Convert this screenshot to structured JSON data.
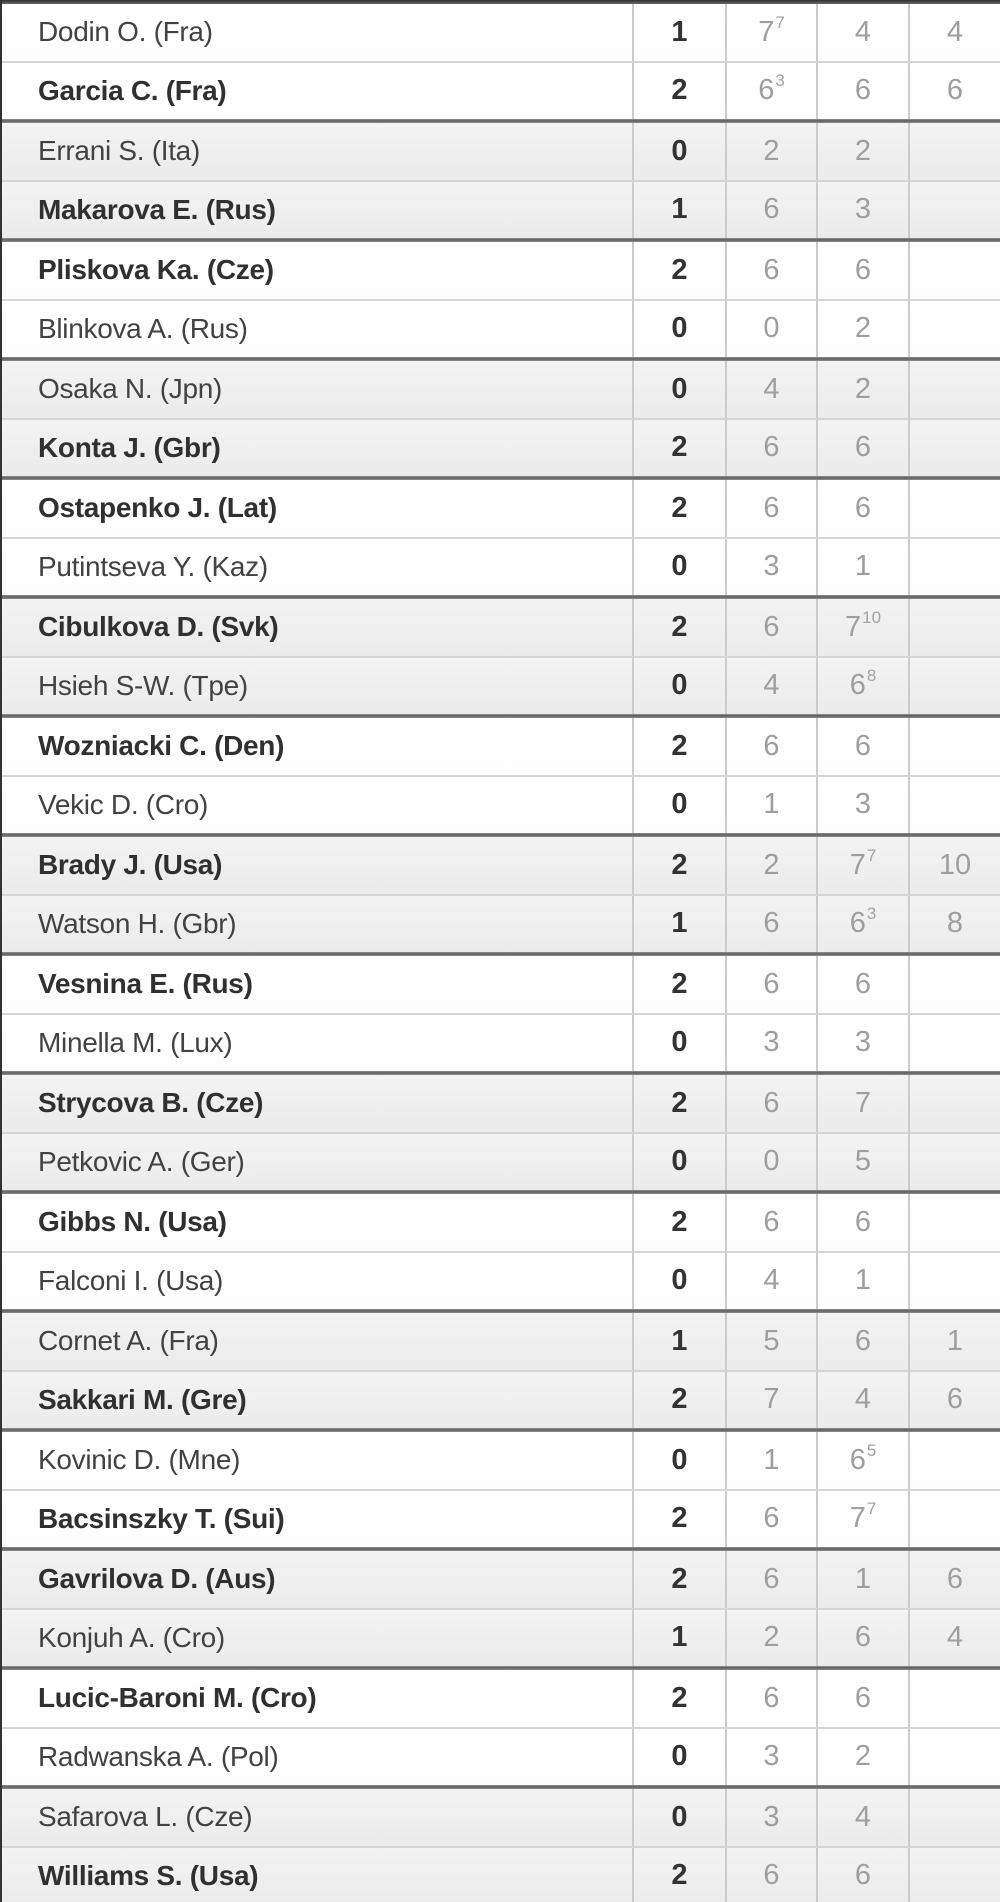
{
  "table": {
    "kind": "tennis-match-results",
    "columns": [
      "player",
      "sets_won",
      "set1",
      "set2",
      "set3"
    ],
    "matches": [
      {
        "shaded": false,
        "players": [
          {
            "name": "Dodin O. (Fra)",
            "winner": false,
            "sets_won": "1",
            "set_scores": [
              {
                "games": "7",
                "tiebreak": "7"
              },
              {
                "games": "4"
              },
              {
                "games": "4"
              }
            ]
          },
          {
            "name": "Garcia C. (Fra)",
            "winner": true,
            "sets_won": "2",
            "set_scores": [
              {
                "games": "6",
                "tiebreak": "3"
              },
              {
                "games": "6"
              },
              {
                "games": "6"
              }
            ]
          }
        ]
      },
      {
        "shaded": true,
        "players": [
          {
            "name": "Errani S. (Ita)",
            "winner": false,
            "sets_won": "0",
            "set_scores": [
              {
                "games": "2"
              },
              {
                "games": "2"
              }
            ]
          },
          {
            "name": "Makarova E. (Rus)",
            "winner": true,
            "sets_won": "1",
            "set_scores": [
              {
                "games": "6"
              },
              {
                "games": "3"
              }
            ]
          }
        ]
      },
      {
        "shaded": false,
        "players": [
          {
            "name": "Pliskova Ka. (Cze)",
            "winner": true,
            "sets_won": "2",
            "set_scores": [
              {
                "games": "6"
              },
              {
                "games": "6"
              }
            ]
          },
          {
            "name": "Blinkova A. (Rus)",
            "winner": false,
            "sets_won": "0",
            "set_scores": [
              {
                "games": "0"
              },
              {
                "games": "2"
              }
            ]
          }
        ]
      },
      {
        "shaded": true,
        "players": [
          {
            "name": "Osaka N. (Jpn)",
            "winner": false,
            "sets_won": "0",
            "set_scores": [
              {
                "games": "4"
              },
              {
                "games": "2"
              }
            ]
          },
          {
            "name": "Konta J. (Gbr)",
            "winner": true,
            "sets_won": "2",
            "set_scores": [
              {
                "games": "6"
              },
              {
                "games": "6"
              }
            ]
          }
        ]
      },
      {
        "shaded": false,
        "players": [
          {
            "name": "Ostapenko J. (Lat)",
            "winner": true,
            "sets_won": "2",
            "set_scores": [
              {
                "games": "6"
              },
              {
                "games": "6"
              }
            ]
          },
          {
            "name": "Putintseva Y. (Kaz)",
            "winner": false,
            "sets_won": "0",
            "set_scores": [
              {
                "games": "3"
              },
              {
                "games": "1"
              }
            ]
          }
        ]
      },
      {
        "shaded": true,
        "players": [
          {
            "name": "Cibulkova D. (Svk)",
            "winner": true,
            "sets_won": "2",
            "set_scores": [
              {
                "games": "6"
              },
              {
                "games": "7",
                "tiebreak": "10"
              }
            ]
          },
          {
            "name": "Hsieh S-W. (Tpe)",
            "winner": false,
            "sets_won": "0",
            "set_scores": [
              {
                "games": "4"
              },
              {
                "games": "6",
                "tiebreak": "8"
              }
            ]
          }
        ]
      },
      {
        "shaded": false,
        "players": [
          {
            "name": "Wozniacki C. (Den)",
            "winner": true,
            "sets_won": "2",
            "set_scores": [
              {
                "games": "6"
              },
              {
                "games": "6"
              }
            ]
          },
          {
            "name": "Vekic D. (Cro)",
            "winner": false,
            "sets_won": "0",
            "set_scores": [
              {
                "games": "1"
              },
              {
                "games": "3"
              }
            ]
          }
        ]
      },
      {
        "shaded": true,
        "players": [
          {
            "name": "Brady J. (Usa)",
            "winner": true,
            "sets_won": "2",
            "set_scores": [
              {
                "games": "2"
              },
              {
                "games": "7",
                "tiebreak": "7"
              },
              {
                "games": "10"
              }
            ]
          },
          {
            "name": "Watson H. (Gbr)",
            "winner": false,
            "sets_won": "1",
            "set_scores": [
              {
                "games": "6"
              },
              {
                "games": "6",
                "tiebreak": "3"
              },
              {
                "games": "8"
              }
            ]
          }
        ]
      },
      {
        "shaded": false,
        "players": [
          {
            "name": "Vesnina E. (Rus)",
            "winner": true,
            "sets_won": "2",
            "set_scores": [
              {
                "games": "6"
              },
              {
                "games": "6"
              }
            ]
          },
          {
            "name": "Minella M. (Lux)",
            "winner": false,
            "sets_won": "0",
            "set_scores": [
              {
                "games": "3"
              },
              {
                "games": "3"
              }
            ]
          }
        ]
      },
      {
        "shaded": true,
        "players": [
          {
            "name": "Strycova B. (Cze)",
            "winner": true,
            "sets_won": "2",
            "set_scores": [
              {
                "games": "6"
              },
              {
                "games": "7"
              }
            ]
          },
          {
            "name": "Petkovic A. (Ger)",
            "winner": false,
            "sets_won": "0",
            "set_scores": [
              {
                "games": "0"
              },
              {
                "games": "5"
              }
            ]
          }
        ]
      },
      {
        "shaded": false,
        "players": [
          {
            "name": "Gibbs N. (Usa)",
            "winner": true,
            "sets_won": "2",
            "set_scores": [
              {
                "games": "6"
              },
              {
                "games": "6"
              }
            ]
          },
          {
            "name": "Falconi I. (Usa)",
            "winner": false,
            "sets_won": "0",
            "set_scores": [
              {
                "games": "4"
              },
              {
                "games": "1"
              }
            ]
          }
        ]
      },
      {
        "shaded": true,
        "players": [
          {
            "name": "Cornet A. (Fra)",
            "winner": false,
            "sets_won": "1",
            "set_scores": [
              {
                "games": "5"
              },
              {
                "games": "6"
              },
              {
                "games": "1"
              }
            ]
          },
          {
            "name": "Sakkari M. (Gre)",
            "winner": true,
            "sets_won": "2",
            "set_scores": [
              {
                "games": "7"
              },
              {
                "games": "4"
              },
              {
                "games": "6"
              }
            ]
          }
        ]
      },
      {
        "shaded": false,
        "players": [
          {
            "name": "Kovinic D. (Mne)",
            "winner": false,
            "sets_won": "0",
            "set_scores": [
              {
                "games": "1"
              },
              {
                "games": "6",
                "tiebreak": "5"
              }
            ]
          },
          {
            "name": "Bacsinszky T. (Sui)",
            "winner": true,
            "sets_won": "2",
            "set_scores": [
              {
                "games": "6"
              },
              {
                "games": "7",
                "tiebreak": "7"
              }
            ]
          }
        ]
      },
      {
        "shaded": true,
        "players": [
          {
            "name": "Gavrilova D. (Aus)",
            "winner": true,
            "sets_won": "2",
            "set_scores": [
              {
                "games": "6"
              },
              {
                "games": "1"
              },
              {
                "games": "6"
              }
            ]
          },
          {
            "name": "Konjuh A. (Cro)",
            "winner": false,
            "sets_won": "1",
            "set_scores": [
              {
                "games": "2"
              },
              {
                "games": "6"
              },
              {
                "games": "4"
              }
            ]
          }
        ]
      },
      {
        "shaded": false,
        "players": [
          {
            "name": "Lucic-Baroni M. (Cro)",
            "winner": true,
            "sets_won": "2",
            "set_scores": [
              {
                "games": "6"
              },
              {
                "games": "6"
              }
            ]
          },
          {
            "name": "Radwanska A. (Pol)",
            "winner": false,
            "sets_won": "0",
            "set_scores": [
              {
                "games": "3"
              },
              {
                "games": "2"
              }
            ]
          }
        ]
      },
      {
        "shaded": true,
        "players": [
          {
            "name": "Safarova L. (Cze)",
            "winner": false,
            "sets_won": "0",
            "set_scores": [
              {
                "games": "3"
              },
              {
                "games": "4"
              }
            ]
          },
          {
            "name": "Williams S. (Usa)",
            "winner": true,
            "sets_won": "2",
            "set_scores": [
              {
                "games": "6"
              },
              {
                "games": "6"
              }
            ]
          }
        ]
      }
    ]
  },
  "colors": {
    "row_bg": "#ffffff",
    "row_alt_bg": "#efefef",
    "winner_name_text": "#303030",
    "loser_name_text": "#424242",
    "sets_won_text": "#333333",
    "set_score_text": "#9e9e9e",
    "grid_line": "#cbcbcb",
    "pair_separator": "#d5d5d5",
    "match_separator": "#5f5f5f",
    "left_border": "#333333"
  }
}
